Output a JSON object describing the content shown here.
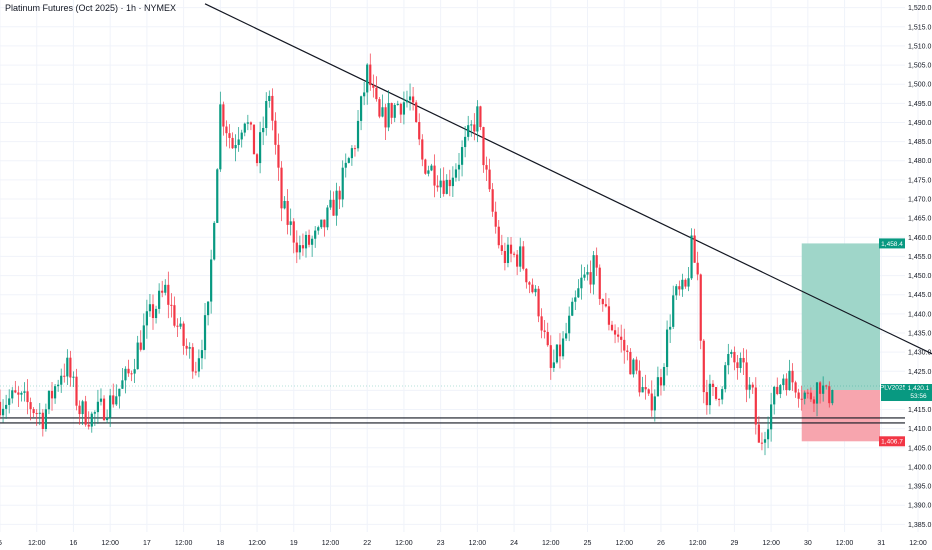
{
  "chart_data": {
    "type": "candlestick",
    "title": "Platinum Futures (Oct 2025) · 1h · NYMEX",
    "x_tick_labels": [
      "5",
      "12:00",
      "16",
      "12:00",
      "17",
      "12:00",
      "18",
      "12:00",
      "19",
      "12:00",
      "22",
      "12:00",
      "23",
      "12:00",
      "24",
      "12:00",
      "25",
      "12:00",
      "26",
      "12:00",
      "29",
      "12:00",
      "30",
      "12:00",
      "31",
      "12:00"
    ],
    "x_tick_hours": [
      0,
      12,
      24,
      36,
      48,
      60,
      72,
      84,
      96,
      108,
      120,
      132,
      144,
      156,
      168,
      180,
      192,
      204,
      216,
      228,
      240,
      252,
      264,
      276,
      288,
      300
    ],
    "y_range": [
      1383,
      1522
    ],
    "y_tick_values": [
      1385,
      1390,
      1395,
      1400,
      1405,
      1410,
      1415,
      1420,
      1425,
      1430,
      1435,
      1440,
      1445,
      1450,
      1455,
      1460,
      1465,
      1470,
      1475,
      1480,
      1485,
      1490,
      1495,
      1500,
      1505,
      1510,
      1515,
      1520
    ],
    "y_tick_labels": [
      "1,385.0",
      "1,390.0",
      "1,395.0",
      "1,400.0",
      "1,405.0",
      "1,410.0",
      "1,415.0",
      "1,420.0",
      "1,425.0",
      "1,430.0",
      "1,435.0",
      "1,440.0",
      "1,445.0",
      "1,450.0",
      "1,455.0",
      "1,460.0",
      "1,465.0",
      "1,470.0",
      "1,475.0",
      "1,480.0",
      "1,485.0",
      "1,490.0",
      "1,495.0",
      "1,500.0",
      "1,505.0",
      "1,510.0",
      "1,515.0",
      "1,520.0"
    ],
    "path_points": [
      [
        0,
        1417
      ],
      [
        5,
        1418
      ],
      [
        10,
        1416
      ],
      [
        14,
        1413
      ],
      [
        20,
        1425
      ],
      [
        22,
        1426
      ],
      [
        26,
        1415
      ],
      [
        30,
        1413
      ],
      [
        36,
        1417
      ],
      [
        42,
        1424
      ],
      [
        48,
        1438
      ],
      [
        54,
        1446
      ],
      [
        60,
        1432
      ],
      [
        64,
        1427
      ],
      [
        68,
        1440
      ],
      [
        72,
        1494
      ],
      [
        76,
        1484
      ],
      [
        80,
        1492
      ],
      [
        84,
        1480
      ],
      [
        88,
        1498
      ],
      [
        92,
        1468
      ],
      [
        98,
        1457
      ],
      [
        104,
        1460
      ],
      [
        110,
        1470
      ],
      [
        116,
        1485
      ],
      [
        120,
        1503
      ],
      [
        124,
        1490
      ],
      [
        130,
        1495
      ],
      [
        134,
        1496
      ],
      [
        138,
        1480
      ],
      [
        142,
        1477
      ],
      [
        146,
        1474
      ],
      [
        152,
        1484
      ],
      [
        156,
        1492
      ],
      [
        160,
        1470
      ],
      [
        164,
        1455
      ],
      [
        170,
        1455
      ],
      [
        176,
        1442
      ],
      [
        180,
        1425
      ],
      [
        184,
        1432
      ],
      [
        190,
        1448
      ],
      [
        194,
        1452
      ],
      [
        198,
        1440
      ],
      [
        202,
        1434
      ],
      [
        208,
        1424
      ],
      [
        212,
        1416
      ],
      [
        216,
        1424
      ],
      [
        220,
        1444
      ],
      [
        224,
        1446
      ],
      [
        226,
        1457
      ],
      [
        228,
        1450
      ],
      [
        230,
        1420
      ],
      [
        234,
        1418
      ],
      [
        238,
        1428
      ],
      [
        242,
        1426
      ],
      [
        246,
        1418
      ],
      [
        248,
        1405
      ],
      [
        252,
        1416
      ],
      [
        256,
        1424
      ],
      [
        260,
        1422
      ],
      [
        264,
        1418
      ],
      [
        268,
        1422
      ],
      [
        270,
        1418
      ],
      [
        272,
        1420
      ]
    ],
    "last_bar_hour": 272,
    "trendline": {
      "start": [
        67,
        1521
      ],
      "end": [
        306,
        1429
      ]
    },
    "support_lines": [
      1411.5,
      1412.8
    ],
    "position": {
      "x_start_hour": 262,
      "entry": 1420.1,
      "target": 1458.4,
      "stop": 1406.7
    },
    "price_labels": {
      "target": "1,458.4",
      "entry": "1,420.1",
      "stop": "1,406.7",
      "hidden_axis_label": "1,460.0",
      "covered_axis_label": "1,405.0"
    },
    "last_price_badge": {
      "symbol": "PLV2025",
      "price": "1,420.1",
      "countdown": "53:56"
    },
    "colors": {
      "up": "#089981",
      "down": "#f23645",
      "target_zone": "#9fd6c9",
      "stop_zone": "#f7a5ae",
      "stop_badge": "#f23645",
      "entry_badge": "#089981",
      "trendline": "#131722",
      "grid": "#f0f3fa"
    }
  }
}
